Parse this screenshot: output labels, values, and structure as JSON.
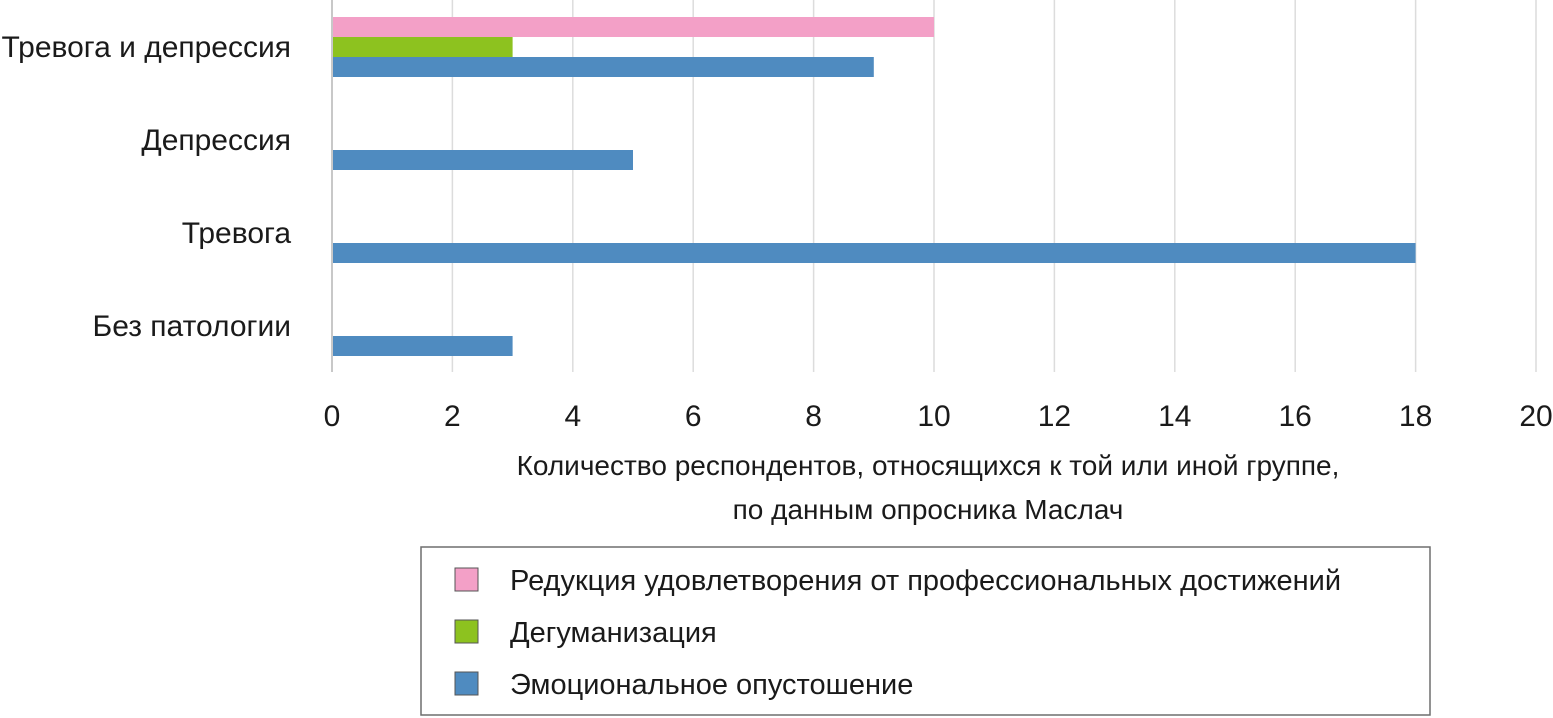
{
  "chart_data": {
    "type": "bar",
    "orientation": "horizontal",
    "categories": [
      "Тревога и депрессия",
      "Депрессия",
      "Тревога",
      "Без патологии"
    ],
    "series": [
      {
        "name": "Редукция удовлетворения от профессиональных достижений",
        "color": "#f3a0c7",
        "values": [
          10,
          0,
          0,
          0
        ]
      },
      {
        "name": "Дегуманизация",
        "color": "#8dc21f",
        "values": [
          3,
          0,
          0,
          0
        ]
      },
      {
        "name": "Эмоциональное опустошение",
        "color": "#4f8bc0",
        "values": [
          9,
          5,
          18,
          3
        ]
      }
    ],
    "xlim": [
      0,
      20
    ],
    "xticks": [
      "0",
      "2",
      "4",
      "6",
      "8",
      "10",
      "12",
      "14",
      "16",
      "18",
      "20"
    ],
    "xlabel_lines": [
      "Количество респондентов, относящихся к той или иной группе,",
      "по данным опросника Маслач"
    ],
    "grid": true,
    "legend_position": "bottom"
  }
}
